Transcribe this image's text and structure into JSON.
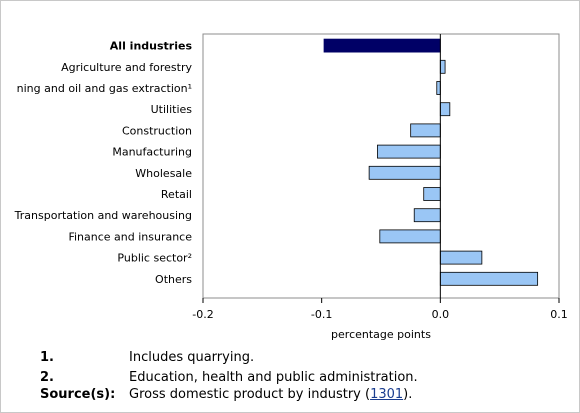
{
  "chart_data": {
    "type": "bar",
    "orientation": "horizontal",
    "categories": [
      "All industries",
      "ning and oil and gas extraction¹",
      "Agriculture and forestry",
      "Utilities",
      "Construction",
      "Manufacturing",
      "Wholesale",
      "Retail",
      "Transportation and warehousing",
      "Finance and insurance",
      "Public sector²",
      "Others"
    ],
    "values": [
      -0.098,
      -0.003,
      0.004,
      0.008,
      -0.025,
      -0.053,
      -0.06,
      -0.014,
      -0.022,
      -0.051,
      0.035,
      0.082
    ],
    "highlight_category": "All industries",
    "bar_colors": {
      "highlight": "#000066",
      "default": "#9ac6f5"
    },
    "xlabel": "percentage points",
    "xlim": [
      -0.2,
      0.1
    ],
    "xticks": [
      "-0.2",
      "-0.1",
      "0.0",
      "0.1"
    ],
    "grid": false,
    "legend": "none"
  },
  "notes": [
    {
      "key": "1.",
      "text": "Includes quarrying."
    },
    {
      "key": "2.",
      "text": "Education, health and public administration."
    }
  ],
  "source": {
    "key": "Source(s):",
    "text_before": "Gross domestic product by industry (",
    "link": "1301",
    "text_after": ")."
  }
}
